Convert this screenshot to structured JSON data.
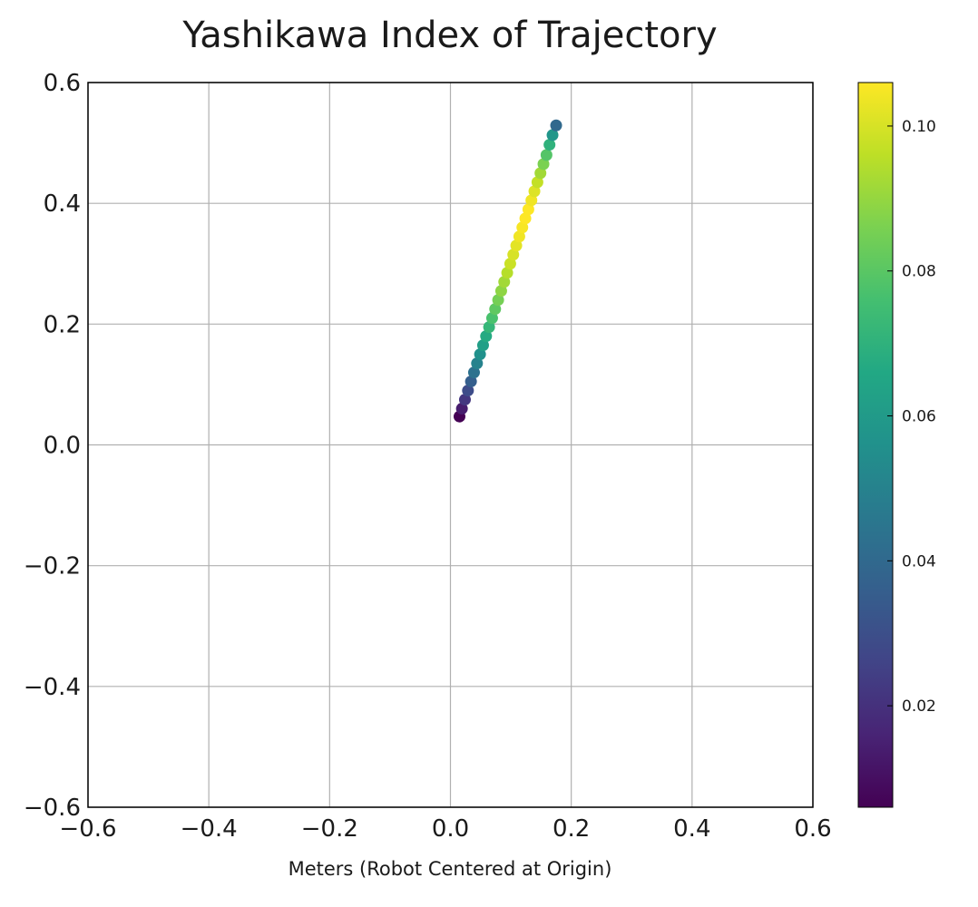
{
  "chart_data": {
    "type": "scatter",
    "title": "Yashikawa Index of Trajectory",
    "xlabel": "Meters (Robot Centered at Origin)",
    "ylabel": "",
    "xlim": [
      -0.6,
      0.6
    ],
    "ylim": [
      -0.6,
      0.6
    ],
    "x_ticks": [
      "−0.6",
      "−0.4",
      "−0.2",
      "0.0",
      "0.2",
      "0.4",
      "0.6"
    ],
    "x_tick_values": [
      -0.6,
      -0.4,
      -0.2,
      0.0,
      0.2,
      0.4,
      0.6
    ],
    "y_ticks": [
      "−0.6",
      "−0.4",
      "−0.2",
      "0.0",
      "0.2",
      "0.4",
      "0.6"
    ],
    "y_tick_values": [
      -0.6,
      -0.4,
      -0.2,
      0.0,
      0.2,
      0.4,
      0.6
    ],
    "grid": true,
    "colormap": "viridis",
    "colorbar": {
      "range": [
        0.006,
        0.106
      ],
      "ticks": [
        "0.02",
        "0.04",
        "0.06",
        "0.08",
        "0.10"
      ],
      "tick_values": [
        0.02,
        0.04,
        0.06,
        0.08,
        0.1
      ]
    },
    "points": [
      {
        "x": 0.015,
        "y": 0.047,
        "c": 0.006
      },
      {
        "x": 0.019,
        "y": 0.06,
        "c": 0.014
      },
      {
        "x": 0.024,
        "y": 0.075,
        "c": 0.022
      },
      {
        "x": 0.029,
        "y": 0.09,
        "c": 0.029
      },
      {
        "x": 0.034,
        "y": 0.105,
        "c": 0.036
      },
      {
        "x": 0.039,
        "y": 0.12,
        "c": 0.043
      },
      {
        "x": 0.044,
        "y": 0.135,
        "c": 0.05
      },
      {
        "x": 0.049,
        "y": 0.15,
        "c": 0.056
      },
      {
        "x": 0.054,
        "y": 0.165,
        "c": 0.062
      },
      {
        "x": 0.059,
        "y": 0.18,
        "c": 0.067
      },
      {
        "x": 0.064,
        "y": 0.195,
        "c": 0.072
      },
      {
        "x": 0.069,
        "y": 0.21,
        "c": 0.077
      },
      {
        "x": 0.074,
        "y": 0.225,
        "c": 0.081
      },
      {
        "x": 0.079,
        "y": 0.24,
        "c": 0.085
      },
      {
        "x": 0.084,
        "y": 0.255,
        "c": 0.089
      },
      {
        "x": 0.089,
        "y": 0.27,
        "c": 0.092
      },
      {
        "x": 0.094,
        "y": 0.285,
        "c": 0.095
      },
      {
        "x": 0.099,
        "y": 0.3,
        "c": 0.098
      },
      {
        "x": 0.104,
        "y": 0.315,
        "c": 0.1
      },
      {
        "x": 0.109,
        "y": 0.33,
        "c": 0.102
      },
      {
        "x": 0.114,
        "y": 0.345,
        "c": 0.104
      },
      {
        "x": 0.119,
        "y": 0.36,
        "c": 0.105
      },
      {
        "x": 0.124,
        "y": 0.375,
        "c": 0.106
      },
      {
        "x": 0.129,
        "y": 0.39,
        "c": 0.106
      },
      {
        "x": 0.134,
        "y": 0.405,
        "c": 0.104
      },
      {
        "x": 0.139,
        "y": 0.42,
        "c": 0.101
      },
      {
        "x": 0.144,
        "y": 0.435,
        "c": 0.097
      },
      {
        "x": 0.149,
        "y": 0.45,
        "c": 0.092
      },
      {
        "x": 0.154,
        "y": 0.465,
        "c": 0.086
      },
      {
        "x": 0.159,
        "y": 0.48,
        "c": 0.079
      },
      {
        "x": 0.164,
        "y": 0.497,
        "c": 0.07
      },
      {
        "x": 0.169,
        "y": 0.513,
        "c": 0.058
      },
      {
        "x": 0.175,
        "y": 0.529,
        "c": 0.04
      }
    ]
  }
}
